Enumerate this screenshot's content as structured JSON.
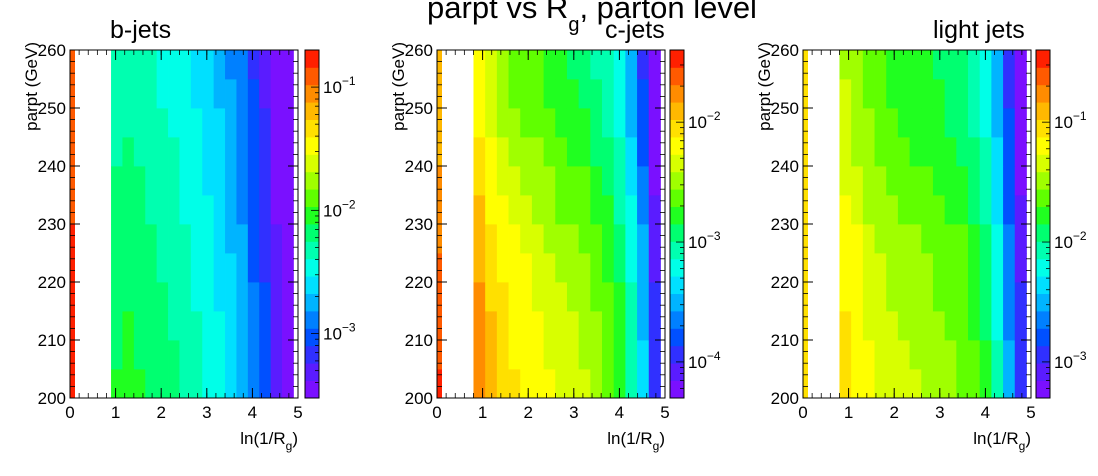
{
  "figure": {
    "title_main": "parpt vs R",
    "title_sub": "g",
    "title_rest": ", parton level"
  },
  "chart_data": [
    {
      "type": "heatmap",
      "title": "b-jets",
      "xlabel_main": "ln(1/R",
      "xlabel_sub": "g",
      "xlabel_close": ")",
      "ylabel": "parpt (GeV)",
      "xlim": [
        0,
        5
      ],
      "ylim": [
        200,
        260
      ],
      "x_ticks": [
        0,
        1,
        2,
        3,
        4,
        5
      ],
      "y_ticks": [
        200,
        210,
        220,
        230,
        240,
        250,
        260
      ],
      "z_scale": "log",
      "z_range": [
        0.0003,
        0.2
      ],
      "z_tick_labels": [
        {
          "mant": "10",
          "exp": "−1",
          "value": 0.1
        },
        {
          "mant": "10",
          "exp": "−2",
          "value": 0.01
        },
        {
          "mant": "10",
          "exp": "−3",
          "value": 0.001
        }
      ],
      "cells": {
        "x_start": 0.9,
        "x_end": 4.9,
        "x_bins": 16,
        "profile": [
          0.006,
          0.0065,
          0.006,
          0.0055,
          0.005,
          0.0045,
          0.004,
          0.0035,
          0.003,
          0.0025,
          0.002,
          0.0015,
          0.001,
          0.0007,
          0.0004,
          0.0003
        ],
        "y_bins": 12,
        "y_weight": [
          1.3,
          1.25,
          1.2,
          1.15,
          1.1,
          1.05,
          1.0,
          0.95,
          0.9,
          0.85,
          0.8,
          0.75
        ]
      },
      "y_projection": {
        "position": "left-edge",
        "z_top": 0.1,
        "z_bottom": 0.2
      }
    },
    {
      "type": "heatmap",
      "title": "c-jets",
      "xlabel_main": "ln(1/R",
      "xlabel_sub": "g",
      "xlabel_close": ")",
      "ylabel": "parpt (GeV)",
      "xlim": [
        0,
        5
      ],
      "ylim": [
        200,
        260
      ],
      "x_ticks": [
        0,
        1,
        2,
        3,
        4,
        5
      ],
      "y_ticks": [
        200,
        210,
        220,
        230,
        240,
        250,
        260
      ],
      "z_scale": "log",
      "z_range": [
        5e-05,
        0.04
      ],
      "z_tick_labels": [
        {
          "mant": "10",
          "exp": "−2",
          "value": 0.01
        },
        {
          "mant": "10",
          "exp": "−3",
          "value": 0.001
        },
        {
          "mant": "10",
          "exp": "−4",
          "value": 0.0001
        }
      ],
      "cells": {
        "x_start": 0.8,
        "x_end": 4.9,
        "x_bins": 16,
        "profile": [
          0.012,
          0.008,
          0.006,
          0.005,
          0.0045,
          0.004,
          0.0035,
          0.003,
          0.0028,
          0.0025,
          0.002,
          0.0016,
          0.0011,
          0.0006,
          0.00025,
          8e-05
        ],
        "y_bins": 12,
        "y_weight": [
          1.6,
          1.5,
          1.4,
          1.3,
          1.2,
          1.1,
          0.9,
          0.8,
          0.7,
          0.6,
          0.55,
          0.5
        ]
      },
      "y_projection": {
        "position": "left-edge",
        "z_top": 0.01,
        "z_bottom": 0.03
      }
    },
    {
      "type": "heatmap",
      "title": "light jets",
      "xlabel_main": "ln(1/R",
      "xlabel_sub": "g",
      "xlabel_close": ")",
      "ylabel": "parpt (GeV)",
      "xlim": [
        0,
        5
      ],
      "ylim": [
        200,
        260
      ],
      "x_ticks": [
        0,
        1,
        2,
        3,
        4,
        5
      ],
      "y_ticks": [
        200,
        210,
        220,
        230,
        240,
        250,
        260
      ],
      "z_scale": "log",
      "z_range": [
        0.0005,
        0.4
      ],
      "z_tick_labels": [
        {
          "mant": "10",
          "exp": "−1",
          "value": 0.1
        },
        {
          "mant": "10",
          "exp": "−2",
          "value": 0.01
        },
        {
          "mant": "10",
          "exp": "−3",
          "value": 0.001
        }
      ],
      "cells": {
        "x_start": 0.8,
        "x_end": 4.9,
        "x_bins": 16,
        "profile": [
          0.06,
          0.05,
          0.04,
          0.035,
          0.03,
          0.028,
          0.026,
          0.024,
          0.022,
          0.02,
          0.018,
          0.014,
          0.01,
          0.005,
          0.002,
          0.0008
        ],
        "y_bins": 12,
        "y_weight": [
          1.5,
          1.45,
          1.3,
          1.25,
          1.15,
          1.1,
          0.95,
          0.85,
          0.75,
          0.7,
          0.65,
          0.6
        ]
      },
      "y_projection": {
        "position": "left-edge",
        "z_top": 0.1,
        "z_bottom": 0.1
      }
    }
  ]
}
